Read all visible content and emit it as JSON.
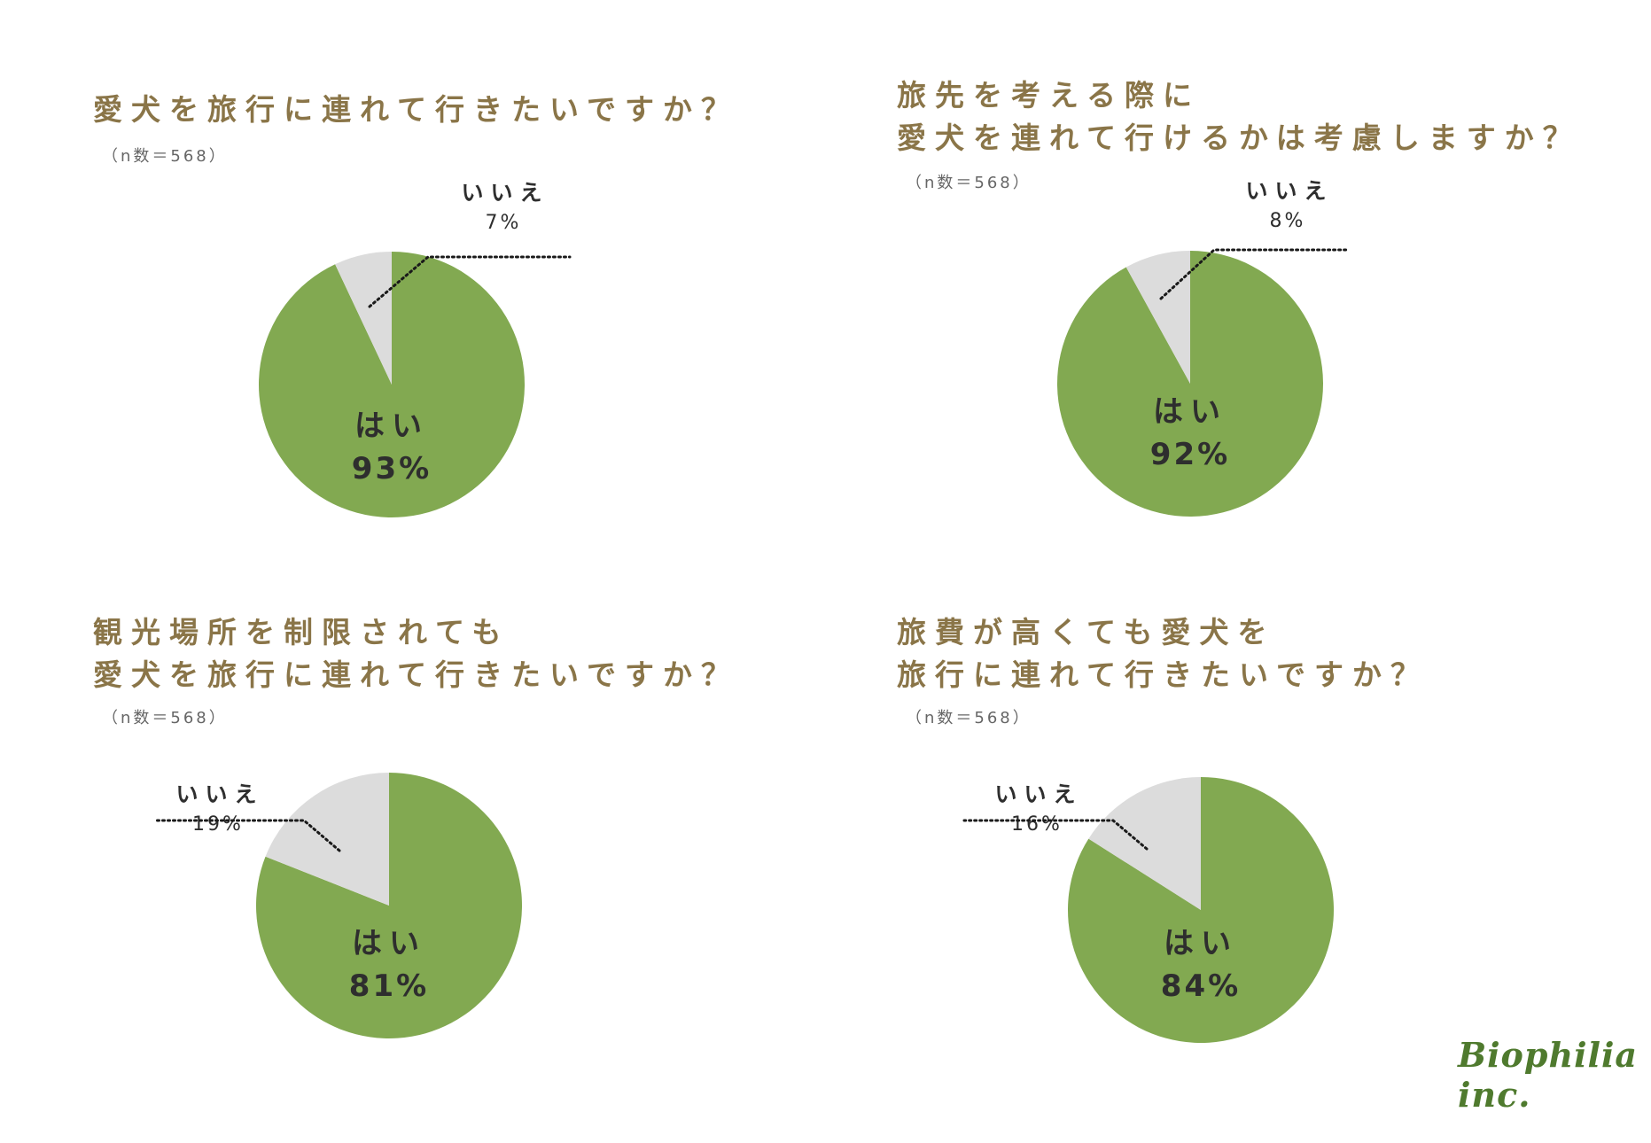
{
  "colors": {
    "yes": "#82a951",
    "no": "#dcdcdc",
    "title": "#8a7548",
    "text": "#2e2e2e",
    "leader": "#1a1a1a"
  },
  "logo": {
    "text": "Biophilia inc."
  },
  "chart_data": [
    {
      "type": "pie",
      "title": "愛犬を旅行に連れて行きたいですか？",
      "subtitle": "（n数＝568）",
      "slices": [
        {
          "label": "はい",
          "value": 93,
          "value_label": "93%"
        },
        {
          "label": "いいえ",
          "value": 7,
          "value_label": "7%"
        }
      ]
    },
    {
      "type": "pie",
      "title": "旅先を考える際に\n愛犬を連れて行けるかは考慮しますか？",
      "subtitle": "（n数＝568）",
      "slices": [
        {
          "label": "はい",
          "value": 92,
          "value_label": "92%"
        },
        {
          "label": "いいえ",
          "value": 8,
          "value_label": "8%"
        }
      ]
    },
    {
      "type": "pie",
      "title": "観光場所を制限されても\n愛犬を旅行に連れて行きたいですか？",
      "subtitle": "（n数＝568）",
      "slices": [
        {
          "label": "はい",
          "value": 81,
          "value_label": "81%"
        },
        {
          "label": "いいえ",
          "value": 19,
          "value_label": "19%"
        }
      ]
    },
    {
      "type": "pie",
      "title": "旅費が高くても愛犬を\n旅行に連れて行きたいですか？",
      "subtitle": "（n数＝568）",
      "slices": [
        {
          "label": "はい",
          "value": 84,
          "value_label": "84%"
        },
        {
          "label": "いいえ",
          "value": 16,
          "value_label": "16%"
        }
      ]
    }
  ]
}
